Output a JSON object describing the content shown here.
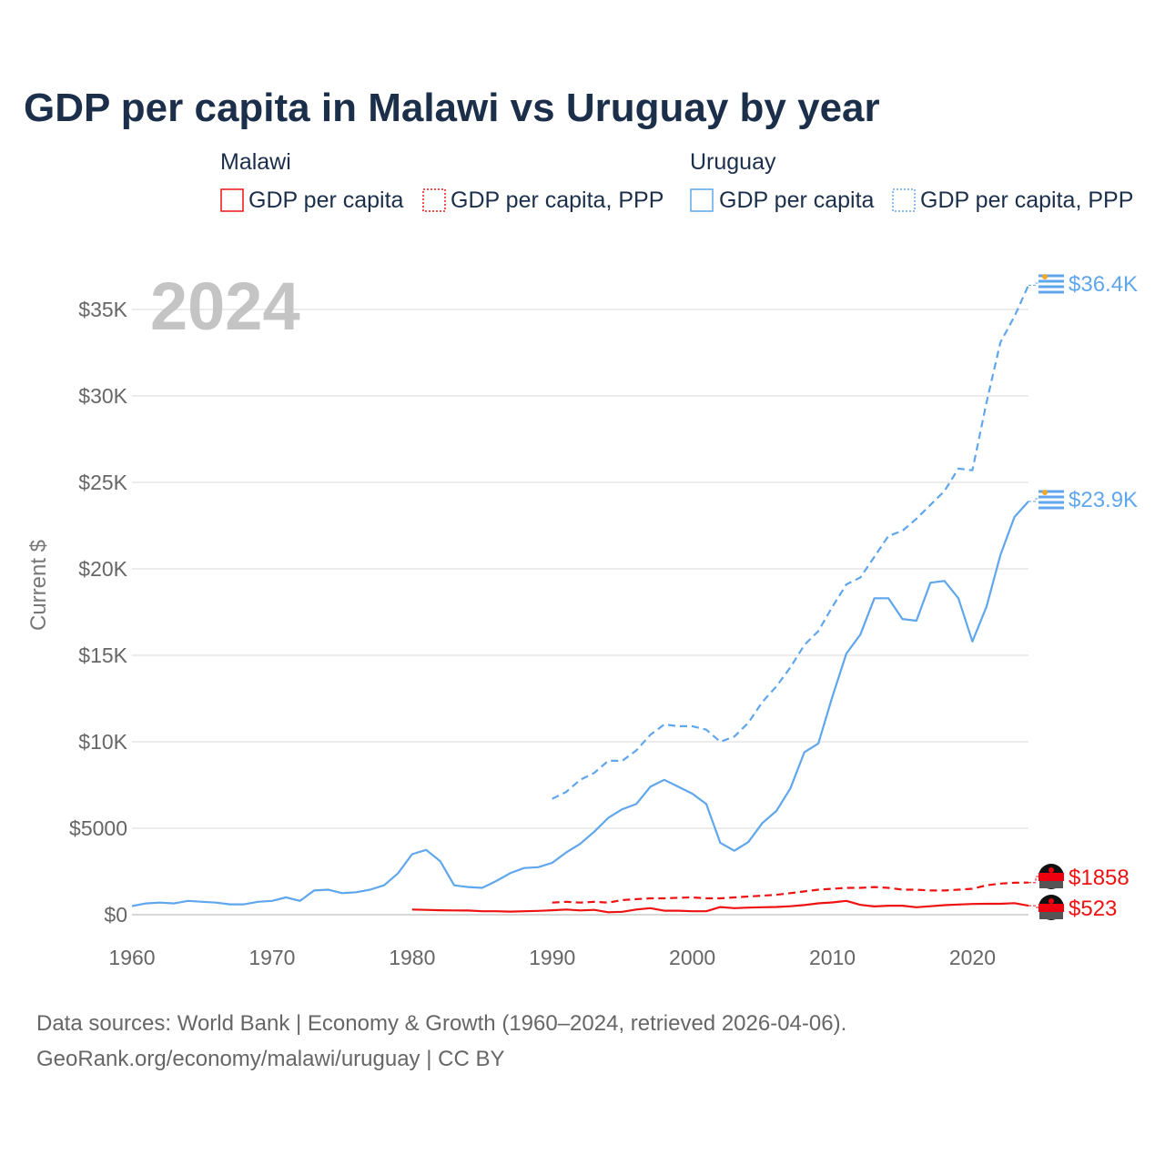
{
  "title": "GDP per capita in Malawi vs Uruguay by year",
  "legend": {
    "groups": [
      {
        "name": "Malawi",
        "items": [
          "GDP per capita",
          "GDP per capita, PPP"
        ],
        "color": "#ee1111"
      },
      {
        "name": "Uruguay",
        "items": [
          "GDP per capita",
          "GDP per capita, PPP"
        ],
        "color": "#5fa6ec"
      }
    ]
  },
  "year_label": "2024",
  "source_lines": [
    "Data sources: World Bank | Economy & Growth (1960–2024, retrieved 2026-04-06).",
    "GeoRank.org/economy/malawi/uruguay | CC BY"
  ],
  "chart_data": {
    "type": "line",
    "title": "GDP per capita in Malawi vs Uruguay by year",
    "xlabel": "",
    "ylabel": "Current $",
    "xlim": [
      1960,
      2024
    ],
    "ylim": [
      0,
      37000
    ],
    "x_ticks": [
      1960,
      1970,
      1980,
      1990,
      2000,
      2010,
      2020
    ],
    "y_ticks": [
      {
        "v": 0,
        "label": "$0"
      },
      {
        "v": 5000,
        "label": "$5000"
      },
      {
        "v": 10000,
        "label": "$10K"
      },
      {
        "v": 15000,
        "label": "$15K"
      },
      {
        "v": 20000,
        "label": "$20K"
      },
      {
        "v": 25000,
        "label": "$25K"
      },
      {
        "v": 30000,
        "label": "$30K"
      },
      {
        "v": 35000,
        "label": "$35K"
      }
    ],
    "grid": true,
    "legend_position": "top",
    "series": [
      {
        "name": "Uruguay GDP per capita, PPP",
        "color": "#5fa6ec",
        "dash": true,
        "start": 1990,
        "end_label": "$36.4K",
        "values": [
          6.7,
          7.1,
          7.8,
          8.2,
          8.9,
          8.9,
          9.5,
          10.4,
          11.0,
          10.9,
          10.9,
          10.7,
          10.0,
          10.3,
          11.1,
          12.3,
          13.2,
          14.3,
          15.6,
          16.4,
          17.8,
          19.1,
          19.5,
          20.7,
          21.9,
          22.2,
          22.9,
          23.7,
          24.5,
          25.8,
          25.7,
          29.6,
          33.1,
          34.6,
          36.4
        ]
      },
      {
        "name": "Uruguay GDP per capita",
        "color": "#5fa6ec",
        "dash": false,
        "start": 1960,
        "end_label": "$23.9K",
        "values": [
          0.5,
          0.65,
          0.7,
          0.65,
          0.8,
          0.75,
          0.7,
          0.6,
          0.6,
          0.75,
          0.8,
          1.0,
          0.8,
          1.4,
          1.45,
          1.25,
          1.3,
          1.45,
          1.7,
          2.4,
          3.5,
          3.75,
          3.1,
          1.7,
          1.6,
          1.55,
          1.95,
          2.4,
          2.7,
          2.75,
          3.0,
          3.6,
          4.1,
          4.8,
          5.6,
          6.1,
          6.4,
          7.4,
          7.8,
          7.4,
          7.0,
          6.4,
          4.15,
          3.7,
          4.2,
          5.3,
          6.0,
          7.3,
          9.4,
          9.9,
          12.6,
          15.1,
          16.2,
          18.3,
          18.3,
          17.1,
          17.0,
          19.2,
          19.3,
          18.3,
          15.8,
          17.8,
          20.8,
          23.0,
          23.9
        ]
      },
      {
        "name": "Malawi GDP per capita, PPP",
        "color": "#ee1111",
        "dash": true,
        "start": 1990,
        "end_label": "$1858",
        "values": [
          0.7,
          0.75,
          0.7,
          0.75,
          0.7,
          0.85,
          0.9,
          0.95,
          0.95,
          0.98,
          1.0,
          0.95,
          0.95,
          1.0,
          1.05,
          1.1,
          1.15,
          1.25,
          1.35,
          1.45,
          1.5,
          1.55,
          1.55,
          1.6,
          1.55,
          1.45,
          1.45,
          1.4,
          1.4,
          1.45,
          1.5,
          1.7,
          1.8,
          1.85,
          1.858
        ]
      },
      {
        "name": "Malawi GDP per capita",
        "color": "#ee1111",
        "dash": false,
        "start": 1980,
        "end_label": "$523",
        "values": [
          0.3,
          0.28,
          0.26,
          0.25,
          0.24,
          0.2,
          0.2,
          0.18,
          0.2,
          0.22,
          0.26,
          0.3,
          0.25,
          0.28,
          0.14,
          0.17,
          0.3,
          0.38,
          0.23,
          0.23,
          0.2,
          0.2,
          0.44,
          0.38,
          0.41,
          0.43,
          0.45,
          0.49,
          0.56,
          0.66,
          0.71,
          0.8,
          0.57,
          0.48,
          0.52,
          0.52,
          0.43,
          0.49,
          0.55,
          0.59,
          0.62,
          0.63,
          0.63,
          0.67,
          0.523
        ]
      }
    ],
    "value_units": "thousands of current US$"
  }
}
